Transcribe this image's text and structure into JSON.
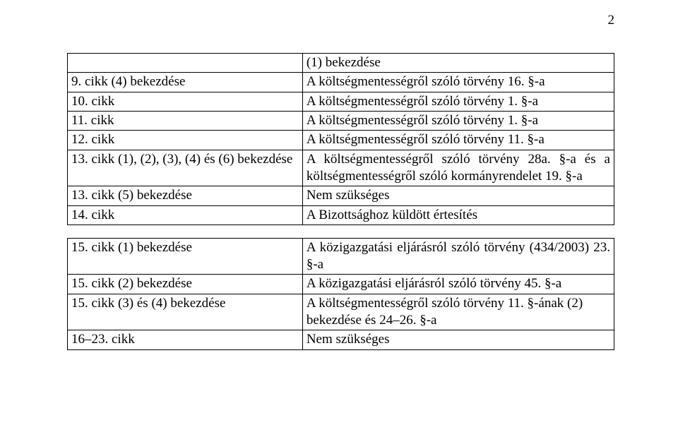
{
  "page_number": "2",
  "rows": [
    {
      "left": "",
      "right": "(1) bekezdése",
      "leftJustify": false,
      "rightJustify": false
    },
    {
      "left": "9. cikk (4) bekezdése",
      "right": "A költségmentességről szóló törvény 16. §-a",
      "leftJustify": false,
      "rightJustify": false
    },
    {
      "left": "10. cikk",
      "right": "A költségmentességről szóló törvény 1. §-a",
      "leftJustify": false,
      "rightJustify": false
    },
    {
      "left": "11. cikk",
      "right": "A költségmentességről szóló törvény 1. §-a",
      "leftJustify": false,
      "rightJustify": false
    },
    {
      "left": "12. cikk",
      "right": "A költségmentességről szóló törvény 11. §-a",
      "leftJustify": false,
      "rightJustify": false
    },
    {
      "left": "13. cikk (1), (2), (3), (4) és (6) bekezdése",
      "right": "A költségmentességről szóló törvény 28a. §-a és a költségmentességről szóló kormányrendelet 19. §-a",
      "leftJustify": true,
      "rightJustify": true
    },
    {
      "left": "13. cikk (5) bekezdése",
      "right": "Nem szükséges",
      "leftJustify": false,
      "rightJustify": false
    },
    {
      "left": "14. cikk",
      "right": "A Bizottsághoz küldött értesítés",
      "leftJustify": false,
      "rightJustify": false
    },
    {
      "spacer": true
    },
    {
      "left": "15. cikk (1) bekezdése",
      "right": "A közigazgatási eljárásról szóló törvény (434/2003) 23. §-a",
      "leftJustify": false,
      "rightJustify": true
    },
    {
      "left": "15. cikk (2) bekezdése",
      "right": "A közigazgatási eljárásról szóló törvény 45. §-a",
      "leftJustify": false,
      "rightJustify": false
    },
    {
      "left": "15. cikk (3) és (4) bekezdése",
      "right": "A költségmentességről szóló törvény 11. §-ának (2) bekezdése és 24–26. §-a",
      "leftJustify": false,
      "rightJustify": false
    },
    {
      "left": "16–23. cikk",
      "right": "Nem szükséges",
      "leftJustify": false,
      "rightJustify": false
    }
  ]
}
